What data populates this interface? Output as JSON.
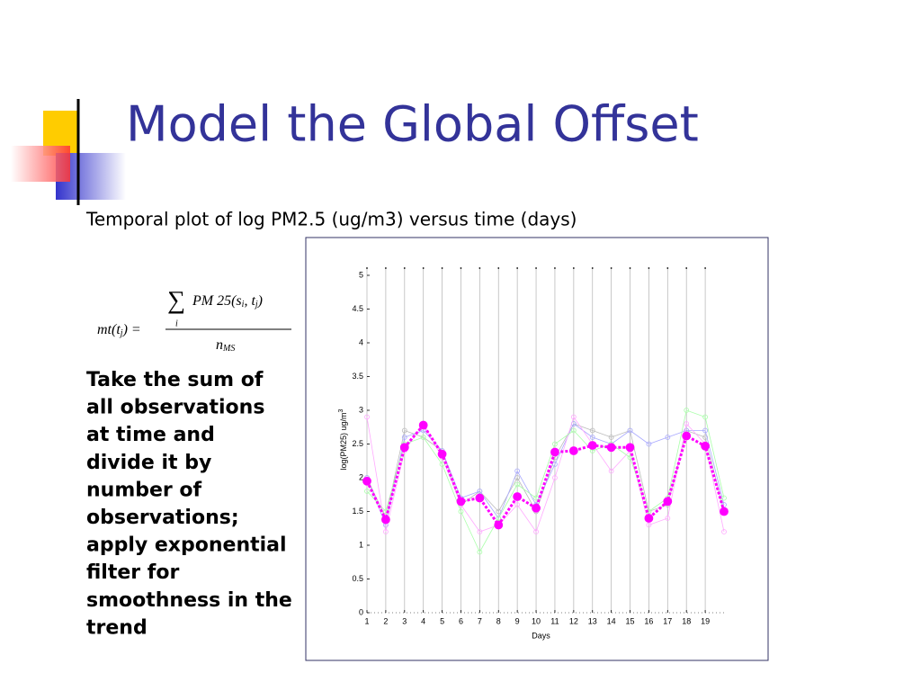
{
  "slide": {
    "title": "Model the Global Offset",
    "subtitle": "Temporal plot of log PM2.5 (ug/m3) versus time (days)",
    "formula": {
      "lhs": "mt(t",
      "lhs_sub": "j",
      "lhs_tail": ") =",
      "sum": "∑",
      "sum_index": "i",
      "numerator": "PM 25(s",
      "num_sub1": "i",
      "num_mid": ", t",
      "num_sub2": "j",
      "num_tail": ")",
      "denominator": "n",
      "den_sub": "MS"
    },
    "body_lines": [
      "Take the sum of",
      "all observations",
      "at time       and",
      "divide it by",
      "number of",
      "observations;",
      "apply exponential",
      "filter for",
      "smoothness in the",
      "trend"
    ]
  },
  "chart_data": {
    "type": "line",
    "xlabel": "Days",
    "ylabel": "log(PM25) ug/m",
    "ylabel_sup": "3",
    "x": [
      1,
      2,
      3,
      4,
      5,
      6,
      7,
      8,
      9,
      10,
      11,
      12,
      13,
      14,
      15,
      16,
      17,
      18,
      19,
      20
    ],
    "xlim": [
      1,
      20
    ],
    "xticks": [
      1,
      2,
      3,
      4,
      5,
      6,
      7,
      8,
      9,
      10,
      11,
      12,
      13,
      14,
      15,
      16,
      17,
      18,
      19
    ],
    "ylim": [
      0,
      5
    ],
    "yticks": [
      0,
      0.5,
      1,
      1.5,
      2,
      2.5,
      3,
      3.5,
      4,
      4.5,
      5
    ],
    "grid": true,
    "series": [
      {
        "color": "#bbbbbb",
        "values": [
          2.0,
          1.4,
          2.7,
          2.6,
          2.4,
          1.6,
          1.8,
          1.5,
          2.0,
          1.5,
          2.3,
          2.8,
          2.7,
          2.6,
          2.7,
          1.5,
          1.6,
          2.7,
          2.6,
          1.5
        ]
      },
      {
        "color": "#aaaaff",
        "values": [
          2.0,
          1.3,
          2.6,
          2.7,
          2.4,
          1.7,
          1.8,
          1.4,
          2.1,
          1.6,
          2.2,
          2.8,
          2.6,
          2.5,
          2.7,
          2.5,
          2.6,
          2.7,
          2.7,
          1.6
        ]
      },
      {
        "color": "#ffaaff",
        "values": [
          2.9,
          1.2,
          2.4,
          2.8,
          2.3,
          1.6,
          1.2,
          1.3,
          1.6,
          1.2,
          2.0,
          2.9,
          2.5,
          2.1,
          2.4,
          1.3,
          1.4,
          2.8,
          2.5,
          1.2
        ]
      },
      {
        "color": "#aaffaa",
        "values": [
          1.8,
          1.5,
          2.5,
          2.6,
          2.2,
          1.5,
          0.9,
          1.4,
          1.9,
          1.7,
          2.5,
          2.7,
          2.4,
          2.5,
          2.3,
          1.5,
          1.7,
          3.0,
          2.9,
          1.7
        ]
      },
      {
        "color": "#ff00ff",
        "highlight": true,
        "values": [
          1.95,
          1.38,
          2.45,
          2.78,
          2.35,
          1.65,
          1.7,
          1.3,
          1.72,
          1.55,
          2.38,
          2.4,
          2.48,
          2.45,
          2.45,
          1.4,
          1.65,
          2.62,
          2.47,
          1.5
        ]
      }
    ]
  }
}
